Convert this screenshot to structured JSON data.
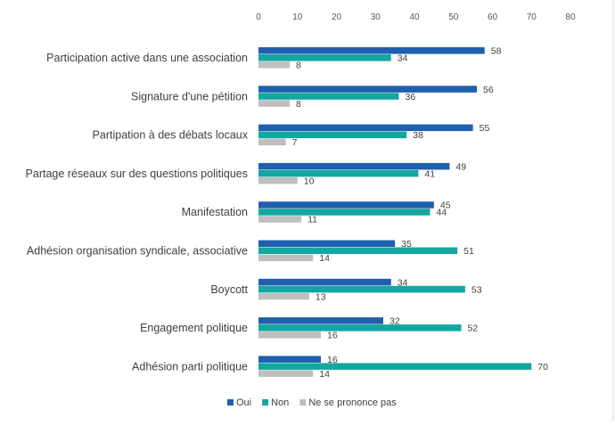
{
  "chart_data": {
    "type": "bar",
    "orientation": "horizontal",
    "categories": [
      "Participation active dans une association",
      "Signature d'une pétition",
      "Partipation à des débats locaux",
      "Partage réseaux sur des questions politiques",
      "Manifestation",
      "Adhésion organisation syndicale, associative",
      "Boycott",
      "Engagement politique",
      "Adhésion parti politique"
    ],
    "series": [
      {
        "name": "Oui",
        "color": "#1f5fae",
        "values": [
          58,
          56,
          55,
          49,
          45,
          35,
          34,
          32,
          16
        ]
      },
      {
        "name": "Non",
        "color": "#14a6a0",
        "values": [
          34,
          36,
          38,
          41,
          44,
          51,
          53,
          52,
          70
        ]
      },
      {
        "name": "Ne se prononce pas",
        "color": "#bfbfbf",
        "values": [
          8,
          8,
          7,
          10,
          11,
          14,
          13,
          16,
          14
        ]
      }
    ],
    "xaxis": {
      "ticks": [
        0,
        10,
        20,
        30,
        40,
        50,
        60,
        70,
        80
      ],
      "tick_labels": [
        "0",
        "10",
        "20",
        "30",
        "40",
        "50",
        "60",
        "70",
        "80"
      ],
      "range": [
        0,
        80
      ],
      "position": "top"
    },
    "grid": false,
    "legend_position": "bottom-center",
    "title": "",
    "xlabel": "",
    "ylabel": ""
  }
}
